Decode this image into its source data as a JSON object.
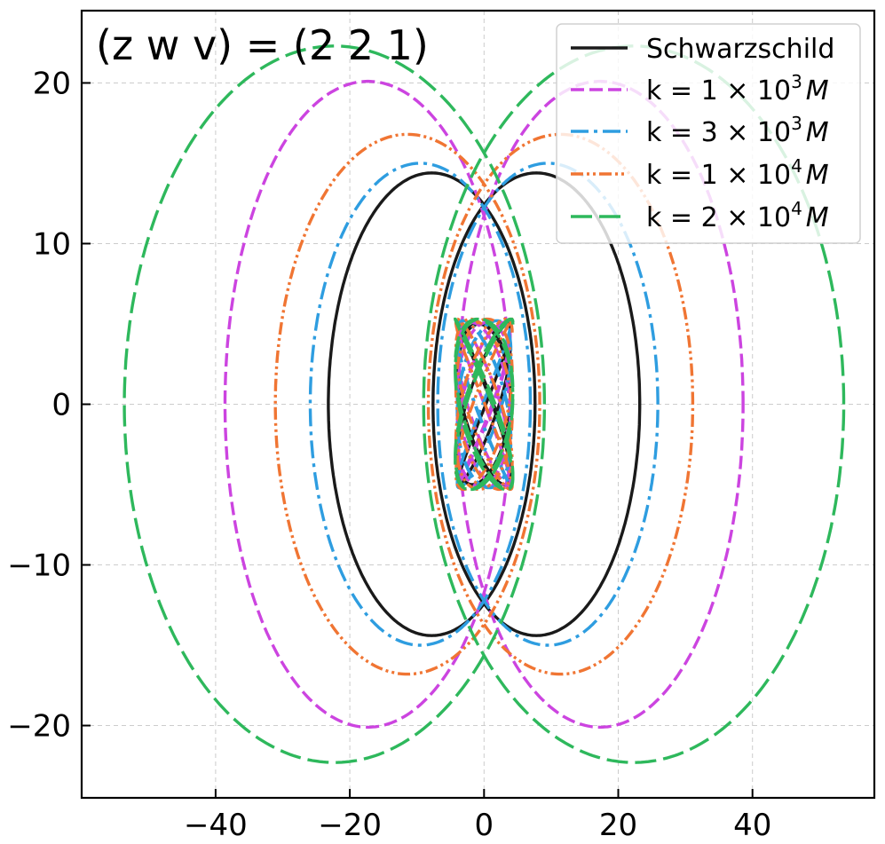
{
  "chart_data": {
    "type": "line",
    "title": "",
    "annotation": "(z w v) = (2 2 1)",
    "xlabel": "",
    "ylabel": "",
    "xlim": [
      -59.96,
      58.16
    ],
    "ylim": [
      -24.5,
      24.5
    ],
    "x_ticks": [
      -40,
      -20,
      0,
      20,
      40
    ],
    "x_tick_labels": [
      "−40",
      "−20",
      "0",
      "20",
      "40"
    ],
    "y_ticks": [
      -20,
      -10,
      0,
      10,
      20
    ],
    "y_tick_labels": [
      "−20",
      "−10",
      "0",
      "10",
      "20"
    ],
    "grid": true,
    "legend_position": "top-right",
    "series": [
      {
        "name": "Schwarzschild",
        "color": "#1a1a1a",
        "dash": "solid",
        "outer": {
          "cx": 7.8,
          "a": 15.4,
          "b": 14.4
        },
        "inner": {
          "a": 3.9,
          "b": 5.0,
          "ratio": 0.82,
          "phase": 0.15
        }
      },
      {
        "name": "k = 1 × 10^3 M",
        "color": "#cc44e0",
        "dash": "dashed",
        "outer": {
          "cx": 17.3,
          "a": 21.3,
          "b": 20.1
        },
        "inner": {
          "a": 3.9,
          "b": 5.1,
          "ratio": 0.82,
          "phase": 0.4
        }
      },
      {
        "name": "k = 3 × 10^3 M",
        "color": "#2e9de0",
        "dash": "dashdot",
        "outer": {
          "cx": 9.5,
          "a": 16.4,
          "b": 15.0
        },
        "inner": {
          "a": 4.0,
          "b": 5.2,
          "ratio": 0.82,
          "phase": 0.7
        }
      },
      {
        "name": "k = 1 × 10^4 M",
        "color": "#f07533",
        "dash": "dashdotdot",
        "outer": {
          "cx": 11.4,
          "a": 19.7,
          "b": 16.8
        },
        "inner": {
          "a": 4.2,
          "b": 5.3,
          "ratio": 0.82,
          "phase": 1.0
        }
      },
      {
        "name": "k = 2 × 10^4 M",
        "color": "#2eb85c",
        "dash": "longdash",
        "outer": {
          "cx": 22.3,
          "a": 31.3,
          "b": 22.3
        },
        "inner": {
          "a": 4.3,
          "b": 5.3,
          "ratio": 0.82,
          "phase": 1.3
        }
      }
    ],
    "legend": [
      {
        "base": "k = 1 × 10",
        "exp": "3",
        "unit": "M"
      },
      {
        "base": "k = 3 × 10",
        "exp": "3",
        "unit": "M"
      },
      {
        "base": "k = 1 × 10",
        "exp": "4",
        "unit": "M"
      },
      {
        "base": "k = 2 × 10",
        "exp": "4",
        "unit": "M"
      }
    ]
  }
}
